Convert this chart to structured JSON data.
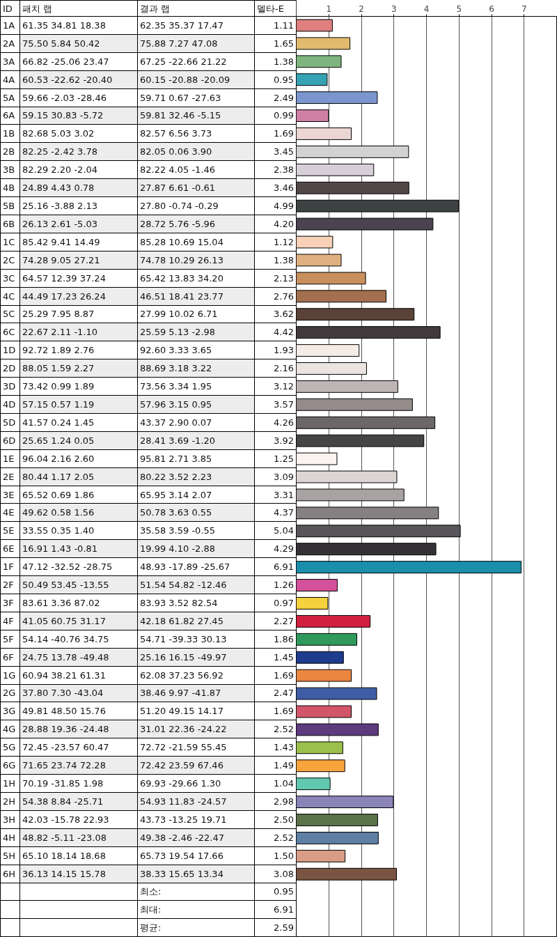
{
  "chart_data": {
    "type": "bar",
    "orientation": "horizontal",
    "categories": [
      "1A",
      "2A",
      "3A",
      "4A",
      "5A",
      "6A",
      "1B",
      "2B",
      "3B",
      "4B",
      "5B",
      "6B",
      "1C",
      "2C",
      "3C",
      "4C",
      "5C",
      "6C",
      "1D",
      "2D",
      "3D",
      "4D",
      "5D",
      "6D",
      "1E",
      "2E",
      "3E",
      "4E",
      "5E",
      "6E",
      "1F",
      "2F",
      "3F",
      "4F",
      "5F",
      "6F",
      "1G",
      "2G",
      "3G",
      "4G",
      "5G",
      "6G",
      "1H",
      "2H",
      "3H",
      "4H",
      "5H",
      "6H"
    ],
    "values": [
      1.11,
      1.65,
      1.38,
      0.95,
      2.49,
      0.99,
      1.69,
      3.45,
      2.38,
      3.46,
      4.99,
      4.2,
      1.12,
      1.38,
      2.13,
      2.76,
      3.62,
      4.42,
      1.93,
      2.16,
      3.12,
      3.57,
      4.26,
      3.92,
      1.25,
      3.09,
      3.31,
      4.37,
      5.04,
      4.29,
      6.91,
      1.26,
      0.97,
      2.27,
      1.86,
      1.45,
      1.69,
      2.47,
      1.69,
      2.52,
      1.43,
      1.49,
      1.04,
      2.98,
      2.5,
      2.52,
      1.5,
      3.08
    ],
    "value_labels": [
      "1.11",
      "1.65",
      "1.38",
      "0.95",
      "2.49",
      "0.99",
      "1.69",
      "3.45",
      "2.38",
      "3.46",
      "4.99",
      "4.20",
      "1.12",
      "1.38",
      "2.13",
      "2.76",
      "3.62",
      "4.42",
      "1.93",
      "2.16",
      "3.12",
      "3.57",
      "4.26",
      "3.92",
      "1.25",
      "3.09",
      "3.31",
      "4.37",
      "5.04",
      "4.29",
      "6.91",
      "1.26",
      "0.97",
      "2.27",
      "1.86",
      "1.45",
      "1.69",
      "2.47",
      "1.69",
      "2.52",
      "1.43",
      "1.49",
      "1.04",
      "2.98",
      "2.50",
      "2.52",
      "1.50",
      "3.08"
    ],
    "colors": [
      "#e07f7f",
      "#e3bb6e",
      "#7fb67f",
      "#36a3b5",
      "#7b96cf",
      "#cf7fa5",
      "#ecd6d4",
      "#d4d2d0",
      "#d6cfd8",
      "#524849",
      "#3e4242",
      "#4b4450",
      "#f8d1b8",
      "#dfb07f",
      "#c98f5d",
      "#a36f4f",
      "#5a4239",
      "#423b3e",
      "#f6ece6",
      "#ebe4e1",
      "#bcb5b3",
      "#948b8a",
      "#6b6768",
      "#464444",
      "#fbf3ef",
      "#dcd5d4",
      "#a8a2a2",
      "#858181",
      "#58555a",
      "#343236",
      "#1a8eaa",
      "#d4519b",
      "#f4d23d",
      "#d22040",
      "#2f9a5b",
      "#1d3c8e",
      "#ea8640",
      "#3f5da5",
      "#d35569",
      "#5e3b7f",
      "#9bc04b",
      "#f7a43c",
      "#62c7b0",
      "#8b84b8",
      "#5c7249",
      "#5f7fa4",
      "#d99c86",
      "#7a5442"
    ],
    "x2lim": [
      0,
      8
    ],
    "x2ticks": [
      1,
      2,
      3,
      4,
      5,
      6,
      7
    ],
    "grid": "x",
    "annotations": [
      "ID",
      "패치 랩",
      "결과 랩",
      "델타-E",
      "61.35 34.81 18.38",
      "62.35 35.37 17.47",
      "75.50 5.84 50.42",
      "75.88 7.27 47.08",
      "66.82 -25.06 23.47",
      "67.25 -22.66 21.22",
      "60.53 -22.62 -20.40",
      "60.15 -20.88 -20.09",
      "59.66 -2.03 -28.46",
      "59.71 0.67 -27.63",
      "59.15 30.83 -5.72",
      "59.81 32.46 -5.15",
      "82.68 5.03 3.02",
      "82.57 6.56 3.73",
      "82.25 -2.42 3.78",
      "82.05 0.06 3.90",
      "82.29 2.20 -2.04",
      "82.22 4.05 -1.46",
      "24.89 4.43 0.78",
      "27.87 6.61 -0.61",
      "25.16 -3.88 2.13",
      "27.80 -0.74 -0.29",
      "26.13 2.61 -5.03",
      "28.72 5.76 -5.96",
      "85.42 9.41 14.49",
      "85.28 10.69 15.04",
      "74.28 9.05 27.21",
      "74.78 10.29 26.13",
      "64.57 12.39 37.24",
      "65.42 13.83 34.20",
      "44.49 17.23 26.24",
      "46.51 18.41 23.77",
      "25.29 7.95 8.87",
      "27.99 10.02 6.71",
      "22.67 2.11 -1.10",
      "25.59 5.13 -2.98",
      "92.72 1.89 2.76",
      "92.60 3.33 3.65",
      "88.05 1.59 2.27",
      "88.69 3.18 3.22",
      "73.42 0.99 1.89",
      "73.56 3.34 1.95",
      "57.15 0.57 1.19",
      "57.96 3.15 0.95",
      "41.57 0.24 1.45",
      "43.37 2.90 0.07",
      "25.65 1.24 0.05",
      "28.41 3.69 -1.20",
      "96.04 2.16 2.60",
      "95.81 2.71 3.85",
      "80.44 1.17 2.05",
      "80.22 3.52 2.23",
      "65.52 0.69 1.86",
      "65.95 3.14 2.07",
      "49.62 0.58 1.56",
      "50.78 3.63 0.55",
      "33.55 0.35 1.40",
      "35.58 3.59 -0.55",
      "16.91 1.43 -0.81",
      "19.99 4.10 -2.88",
      "47.12 -32.52 -28.75",
      "48.93 -17.89 -25.67",
      "50.49 53.45 -13.55",
      "51.54 54.82 -12.46",
      "83.61 3.36 87.02",
      "83.93 3.52 82.54",
      "41.05 60.75 31.17",
      "42.18 61.82 27.45",
      "54.14 -40.76 34.75",
      "54.71 -39.33 30.13",
      "24.75 13.78 -49.48",
      "25.16 16.15 -49.97",
      "60.94 38.21 61.31",
      "62.08 37.23 56.92",
      "37.80 7.30 -43.04",
      "38.46 9.97 -41.87",
      "49.81 48.50 15.76",
      "51.20 49.15 14.17",
      "28.88 19.36 -24.48",
      "31.01 22.36 -24.22",
      "72.45 -23.57 60.47",
      "72.72 -21.59 55.45",
      "71.65 23.74 72.28",
      "72.42 23.59 67.46",
      "70.19 -31.85 1.98",
      "69.93 -29.66 1.30",
      "54.38 8.84 -25.71",
      "54.93 11.83 -24.57",
      "42.03 -15.78 22.93",
      "43.73 -13.25 19.71",
      "48.82 -5.11 -23.08",
      "49.38 -2.46 -22.47",
      "65.10 18.14 18.68",
      "65.73 19.54 17.66",
      "36.13 14.15 15.78",
      "38.33 15.65 13.34",
      "최소:",
      "최대:",
      "평균:",
      "0.95",
      "6.91",
      "2.59"
    ]
  }
}
